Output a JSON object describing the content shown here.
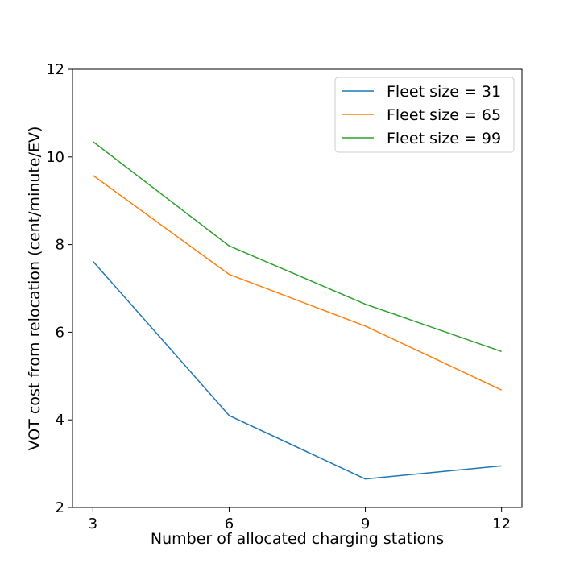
{
  "chart_data": {
    "type": "line",
    "x": [
      3,
      6,
      9,
      12
    ],
    "series": [
      {
        "name": "Fleet size = 31",
        "values": [
          7.62,
          4.1,
          2.65,
          2.95
        ],
        "color": "#1f77b4"
      },
      {
        "name": "Fleet size = 65",
        "values": [
          9.58,
          7.32,
          6.14,
          4.68
        ],
        "color": "#ff7f0e"
      },
      {
        "name": "Fleet size = 99",
        "values": [
          10.35,
          7.97,
          6.64,
          5.56
        ],
        "color": "#2ca02c"
      }
    ],
    "xlabel": "Number of allocated charging stations",
    "ylabel": "VOT cost from relocation (cent/minute/EV)",
    "xticks": [
      "3",
      "6",
      "9",
      "12"
    ],
    "yticks": [
      "2",
      "4",
      "6",
      "8",
      "10",
      "12"
    ],
    "xlim": [
      2.55,
      12.45
    ],
    "ylim": [
      2,
      12
    ],
    "grid": false,
    "legend_position": "top-right"
  }
}
